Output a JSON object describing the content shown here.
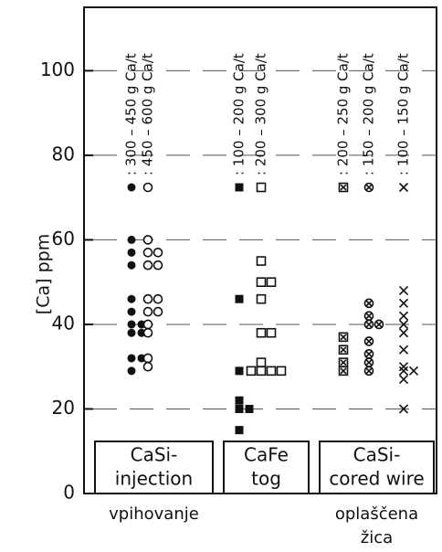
{
  "chart_data": {
    "type": "strip",
    "y_label": "[Ca] ppm",
    "ylim": [
      0,
      115
    ],
    "yticks": [
      0,
      20,
      40,
      60,
      80,
      100
    ],
    "grid": true,
    "groups": [
      {
        "label": [
          "CaSi-",
          "injection"
        ],
        "caption": [
          "vpihovanje"
        ]
      },
      {
        "label": [
          "CaFe",
          "tog"
        ]
      },
      {
        "label": [
          "CaSi-",
          "cored wire"
        ],
        "caption": [
          "oplaščena",
          "žica"
        ]
      }
    ],
    "series": [
      {
        "name": ": 300 – 450 g Ca/t",
        "marker": "filled-circle",
        "group": 0,
        "color": "#111111",
        "values": [
          60,
          57,
          54,
          46,
          43,
          40,
          40,
          38,
          38,
          32,
          32,
          29
        ]
      },
      {
        "name": ": 450 – 600 g Ca/t",
        "marker": "open-circle",
        "group": 0,
        "color": "#111111",
        "values": [
          60,
          57,
          57,
          54,
          54,
          46,
          46,
          43,
          43,
          40,
          38,
          32,
          30
        ]
      },
      {
        "name": ": 100 – 200 g Ca/t",
        "marker": "filled-square",
        "group": 1,
        "color": "#111111",
        "values": [
          46,
          29,
          22,
          20,
          20,
          15
        ]
      },
      {
        "name": ": 200 – 300 g Ca/t",
        "marker": "open-square",
        "group": 1,
        "color": "#111111",
        "values": [
          55,
          50,
          50,
          46,
          38,
          38,
          31,
          29,
          29,
          29,
          29
        ]
      },
      {
        "name": ": 200 – 250 g Ca/t",
        "marker": "boxed-cross",
        "group": 2,
        "color": "#111111",
        "values": [
          37,
          34,
          31,
          29
        ]
      },
      {
        "name": ": 150 – 200 g Ca/t",
        "marker": "circled-cross",
        "group": 2,
        "color": "#111111",
        "values": [
          45,
          42,
          40,
          40,
          36,
          33,
          31,
          29
        ]
      },
      {
        "name": ": 100 – 150 g Ca/t",
        "marker": "cross",
        "group": 2,
        "color": "#111111",
        "values": [
          48,
          45,
          42,
          40,
          38,
          34,
          30,
          29,
          29,
          27,
          20
        ]
      }
    ]
  }
}
